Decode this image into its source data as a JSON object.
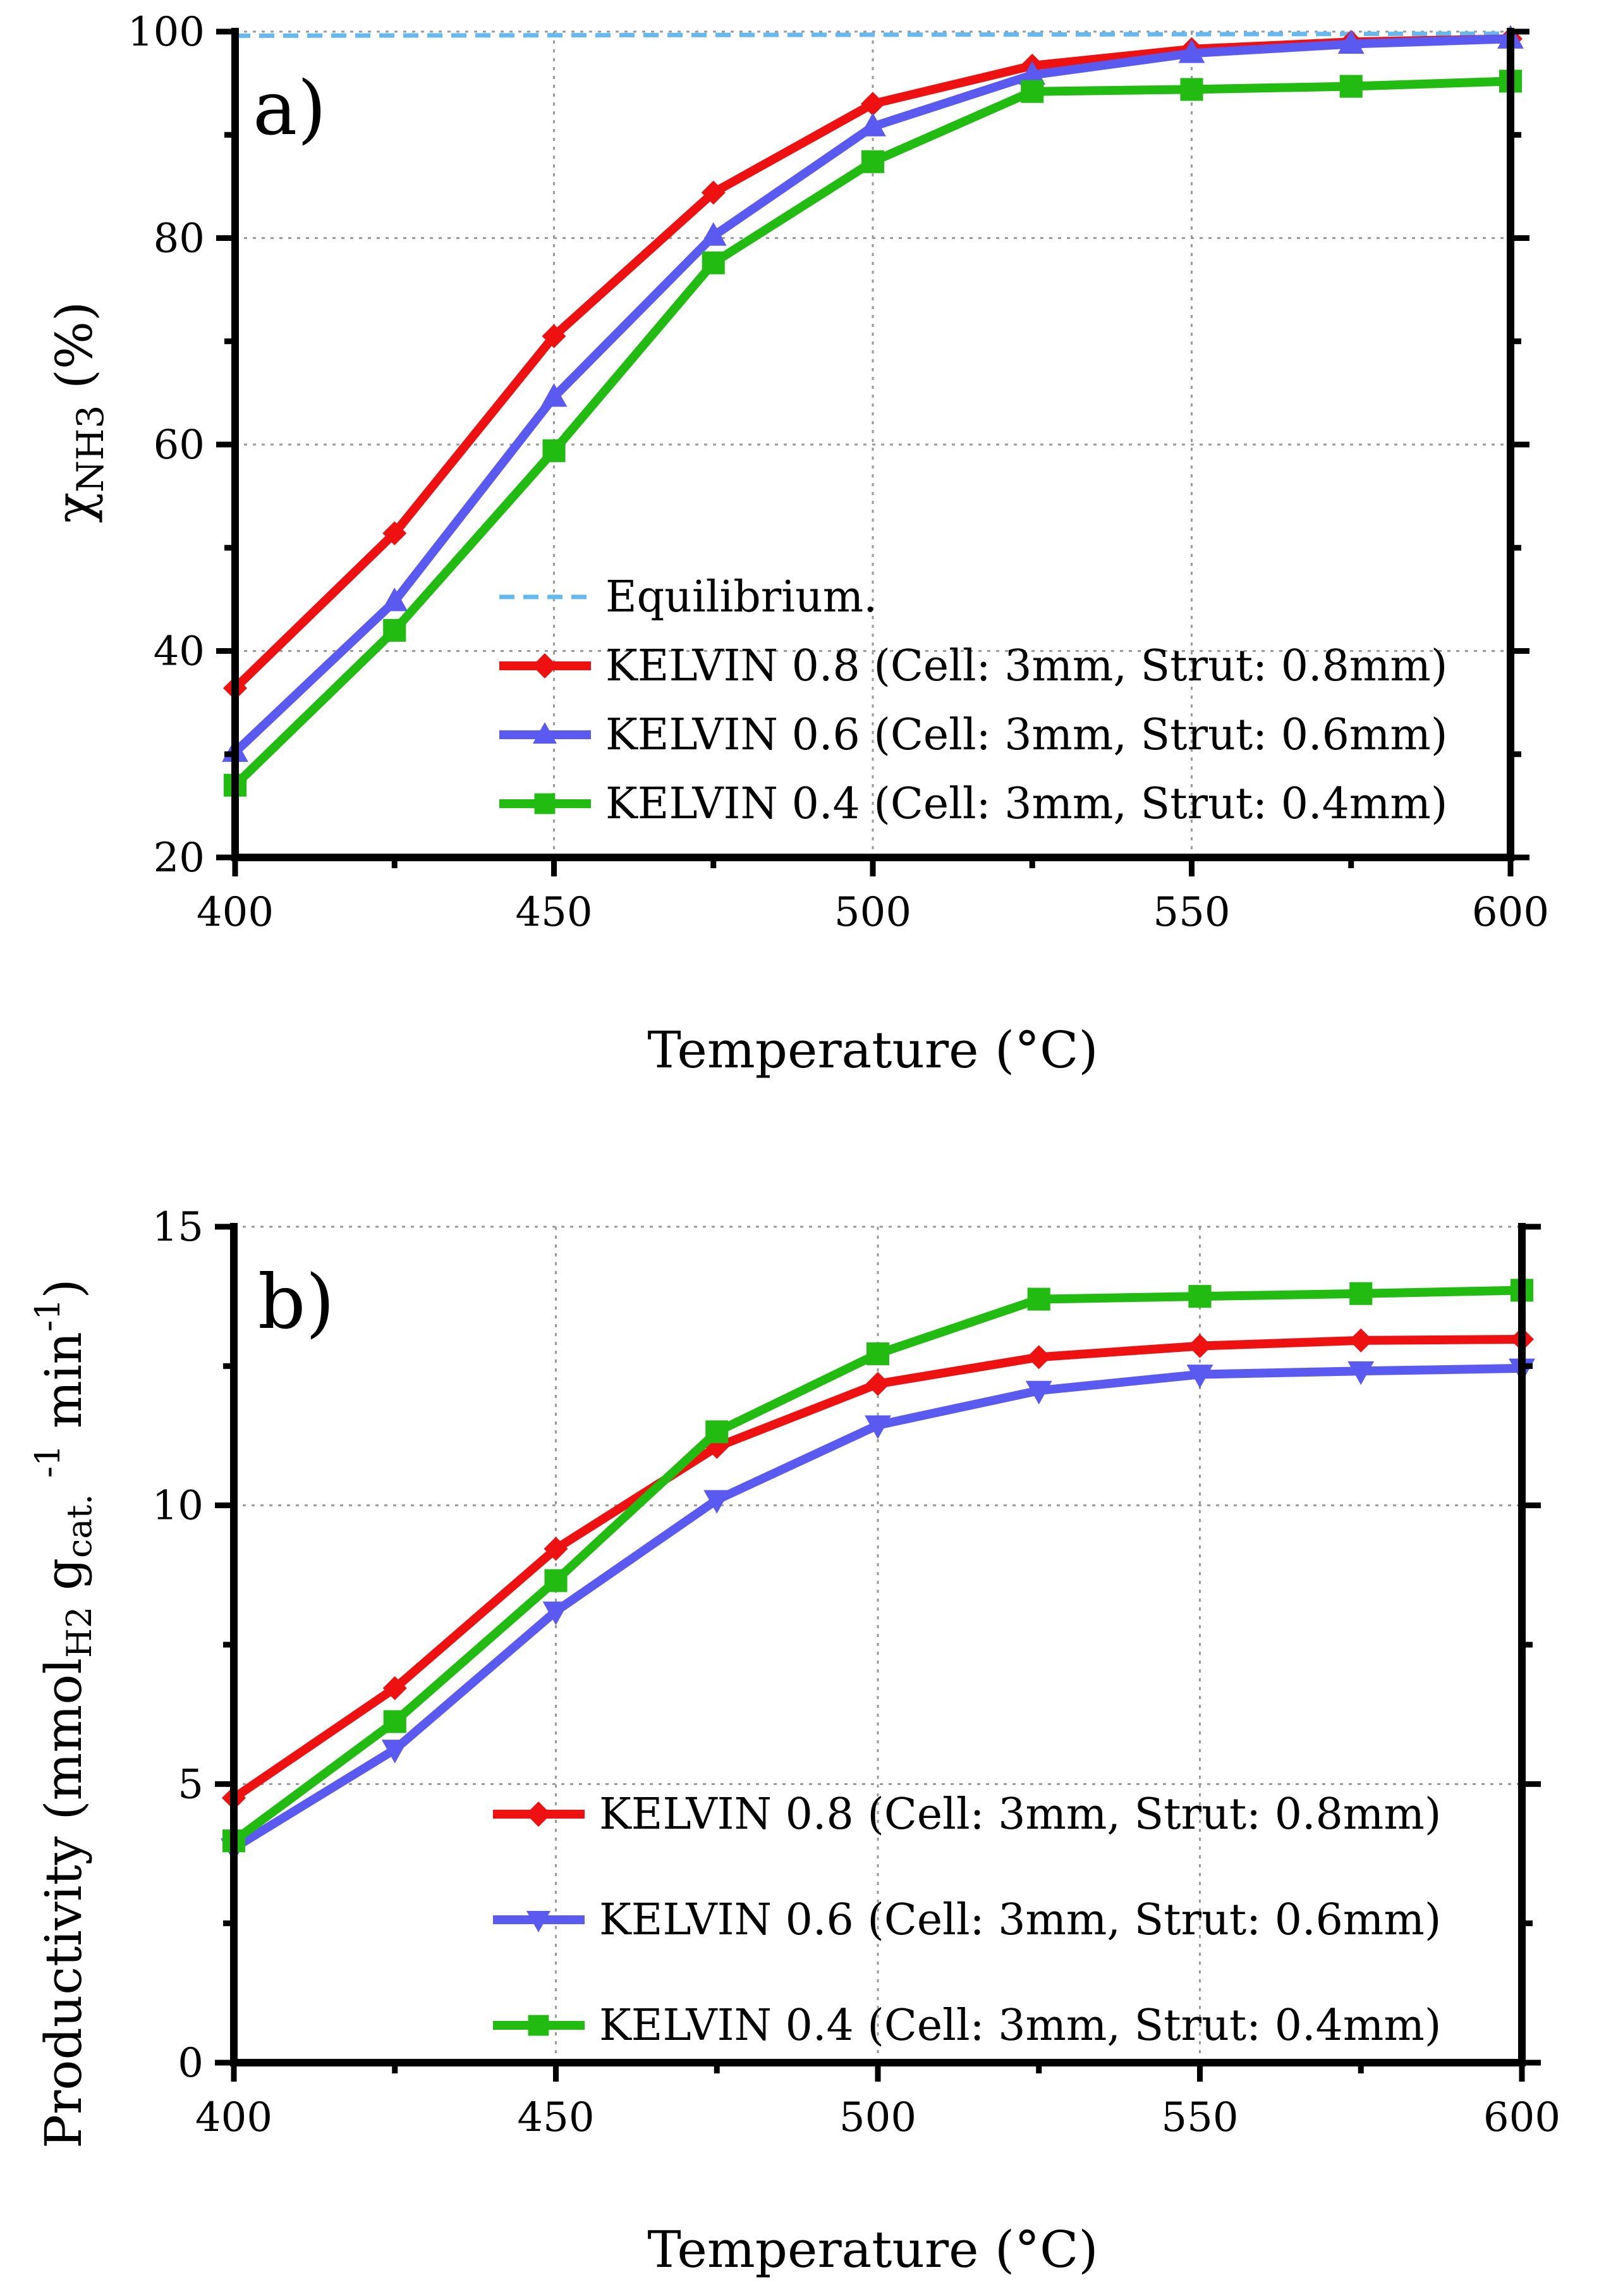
{
  "chart_data": [
    {
      "type": "line",
      "panel_label": "a)",
      "xlabel": "Temperature (°C)",
      "ylabel": {
        "prefix": "χ",
        "subscript": "NH3",
        "suffix": " (%)"
      },
      "xlim": [
        400,
        600
      ],
      "ylim": [
        20,
        100
      ],
      "xticks": [
        400,
        450,
        500,
        550,
        600
      ],
      "yticks": [
        20,
        40,
        60,
        80,
        100
      ],
      "x": [
        400,
        425,
        450,
        475,
        500,
        525,
        550,
        575,
        600
      ],
      "legend_position": "bottom-right",
      "series": [
        {
          "name": "Equilibrium.",
          "color": "#66b8ee",
          "dashed": true,
          "marker": "none",
          "x": [
            400,
            600
          ],
          "values": [
            99.6,
            99.8
          ]
        },
        {
          "name": "KELVIN 0.8 (Cell: 3mm, Strut: 0.8mm)",
          "color": "#ee1111",
          "marker": "diamond",
          "values": [
            36.4,
            51.4,
            70.5,
            84.4,
            93.0,
            96.7,
            98.3,
            99.0,
            99.3
          ]
        },
        {
          "name": "KELVIN 0.6 (Cell: 3mm, Strut: 0.6mm)",
          "color": "#5a5af0",
          "marker": "triangle-up",
          "values": [
            30.2,
            44.8,
            64.6,
            80.2,
            90.8,
            95.8,
            97.9,
            98.8,
            99.3
          ]
        },
        {
          "name": "KELVIN 0.4 (Cell: 3mm, Strut: 0.4mm)",
          "color": "#22bb11",
          "marker": "square",
          "values": [
            27.0,
            42.0,
            59.4,
            77.6,
            87.4,
            94.2,
            94.4,
            94.7,
            95.2
          ]
        }
      ]
    },
    {
      "type": "line",
      "panel_label": "b)",
      "xlabel": "Temperature (°C)",
      "ylabel": {
        "p1": "Productivity (mmol",
        "s1": "H2",
        "p2": " g",
        "s2": "cat.",
        "p3": " ",
        "sup1": "-1",
        "p4": " min",
        "sup2": "-1",
        "p5": ")"
      },
      "xlim": [
        400,
        600
      ],
      "ylim": [
        0,
        15
      ],
      "xticks": [
        400,
        450,
        500,
        550,
        600
      ],
      "yticks": [
        0,
        5,
        10,
        15
      ],
      "x": [
        400,
        425,
        450,
        475,
        500,
        525,
        550,
        575,
        600
      ],
      "legend_position": "bottom-right",
      "series": [
        {
          "name": "KELVIN 0.8 (Cell: 3mm, Strut: 0.8mm)",
          "color": "#ee1111",
          "marker": "diamond",
          "values": [
            4.75,
            6.72,
            9.22,
            11.05,
            12.18,
            12.66,
            12.86,
            12.96,
            12.98
          ]
        },
        {
          "name": "KELVIN 0.6 (Cell: 3mm, Strut: 0.6mm)",
          "color": "#5a5af0",
          "marker": "triangle-down",
          "values": [
            3.85,
            5.62,
            8.1,
            10.1,
            11.44,
            12.06,
            12.35,
            12.41,
            12.46
          ]
        },
        {
          "name": "KELVIN 0.4 (Cell: 3mm, Strut: 0.4mm)",
          "color": "#22bb11",
          "marker": "square",
          "values": [
            3.98,
            6.12,
            8.65,
            11.32,
            12.72,
            13.7,
            13.75,
            13.8,
            13.86
          ]
        }
      ]
    }
  ]
}
